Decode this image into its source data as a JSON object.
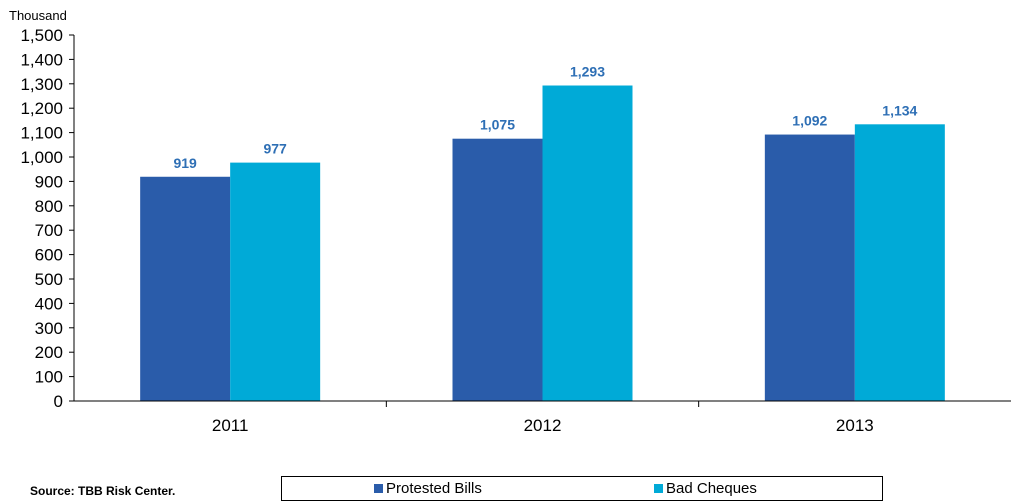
{
  "chart_data": {
    "type": "bar",
    "unit_label": "Thousand",
    "categories": [
      "2011",
      "2012",
      "2013"
    ],
    "series": [
      {
        "name": "Protested Bills",
        "color": "#2a5caa",
        "values": [
          919,
          1075,
          1092
        ],
        "labels": [
          "919",
          "1,075",
          "1,092"
        ]
      },
      {
        "name": "Bad Cheques",
        "color": "#00aad7",
        "values": [
          977,
          1293,
          1134
        ],
        "labels": [
          "977",
          "1,293",
          "1,134"
        ]
      }
    ],
    "ylim": [
      0,
      1500
    ],
    "yticks": [
      {
        "value": 0,
        "label": "0"
      },
      {
        "value": 100,
        "label": "100"
      },
      {
        "value": 200,
        "label": "200"
      },
      {
        "value": 300,
        "label": "300"
      },
      {
        "value": 400,
        "label": "400"
      },
      {
        "value": 500,
        "label": "500"
      },
      {
        "value": 600,
        "label": "600"
      },
      {
        "value": 700,
        "label": "700"
      },
      {
        "value": 800,
        "label": "800"
      },
      {
        "value": 900,
        "label": "900"
      },
      {
        "value": 1000,
        "label": "1,000"
      },
      {
        "value": 1100,
        "label": "1,100"
      },
      {
        "value": 1200,
        "label": "1,200"
      },
      {
        "value": 1300,
        "label": "1,300"
      },
      {
        "value": 1400,
        "label": "1,400"
      },
      {
        "value": 1500,
        "label": "1,500"
      }
    ],
    "label_color": "#2e6fb5",
    "grid": false,
    "legend_position": "bottom",
    "source": "Source: TBB Risk Center."
  }
}
